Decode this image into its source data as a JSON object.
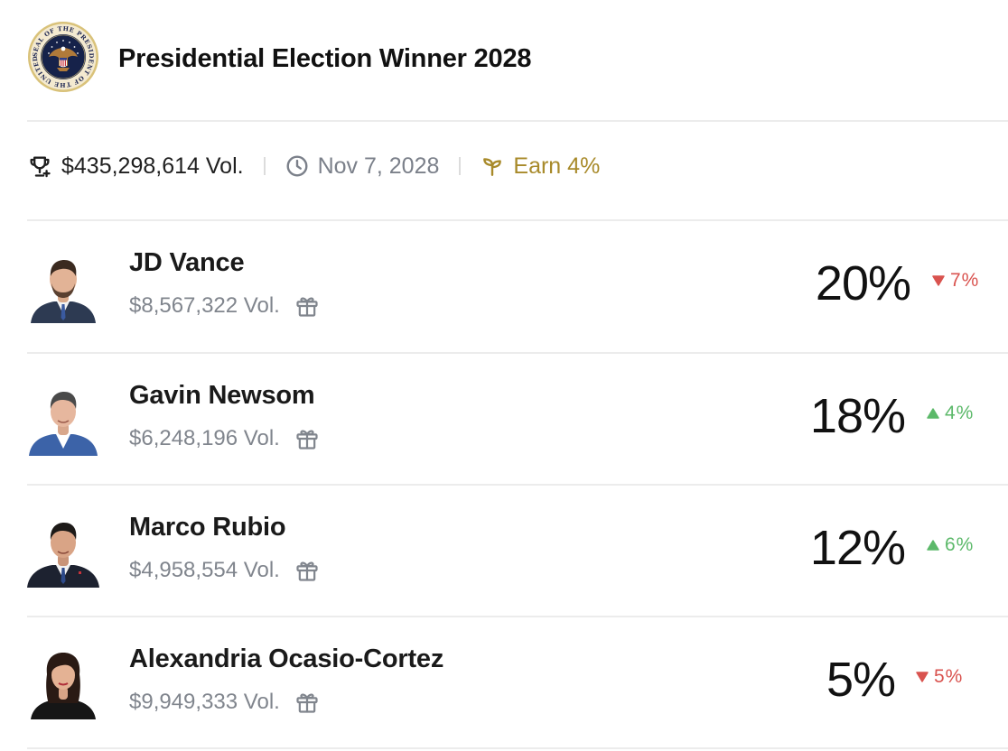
{
  "market": {
    "title": "Presidential Election Winner 2028",
    "seal_icon": "presidential-seal-icon",
    "seal_text": "SEAL OF THE PRESIDENT OF THE UNITED STATES"
  },
  "meta": {
    "volume": "$435,298,614 Vol.",
    "end_date": "Nov 7, 2028",
    "earn": "Earn 4%",
    "earn_color": "#a88a2a"
  },
  "candidates": [
    {
      "name": "JD Vance",
      "volume": "$8,567,322 Vol.",
      "percent": "20%",
      "change": "7%",
      "direction": "down",
      "percent_value": 20
    },
    {
      "name": "Gavin Newsom",
      "volume": "$6,248,196 Vol.",
      "percent": "18%",
      "change": "4%",
      "direction": "up",
      "percent_value": 18
    },
    {
      "name": "Marco Rubio",
      "volume": "$4,958,554 Vol.",
      "percent": "12%",
      "change": "6%",
      "direction": "up",
      "percent_value": 12
    },
    {
      "name": "Alexandria Ocasio-Cortez",
      "volume": "$9,949,333 Vol.",
      "percent": "5%",
      "change": "5%",
      "direction": "down",
      "percent_value": 5
    }
  ],
  "colors": {
    "down": "#d9534f",
    "up": "#5cb96a"
  }
}
